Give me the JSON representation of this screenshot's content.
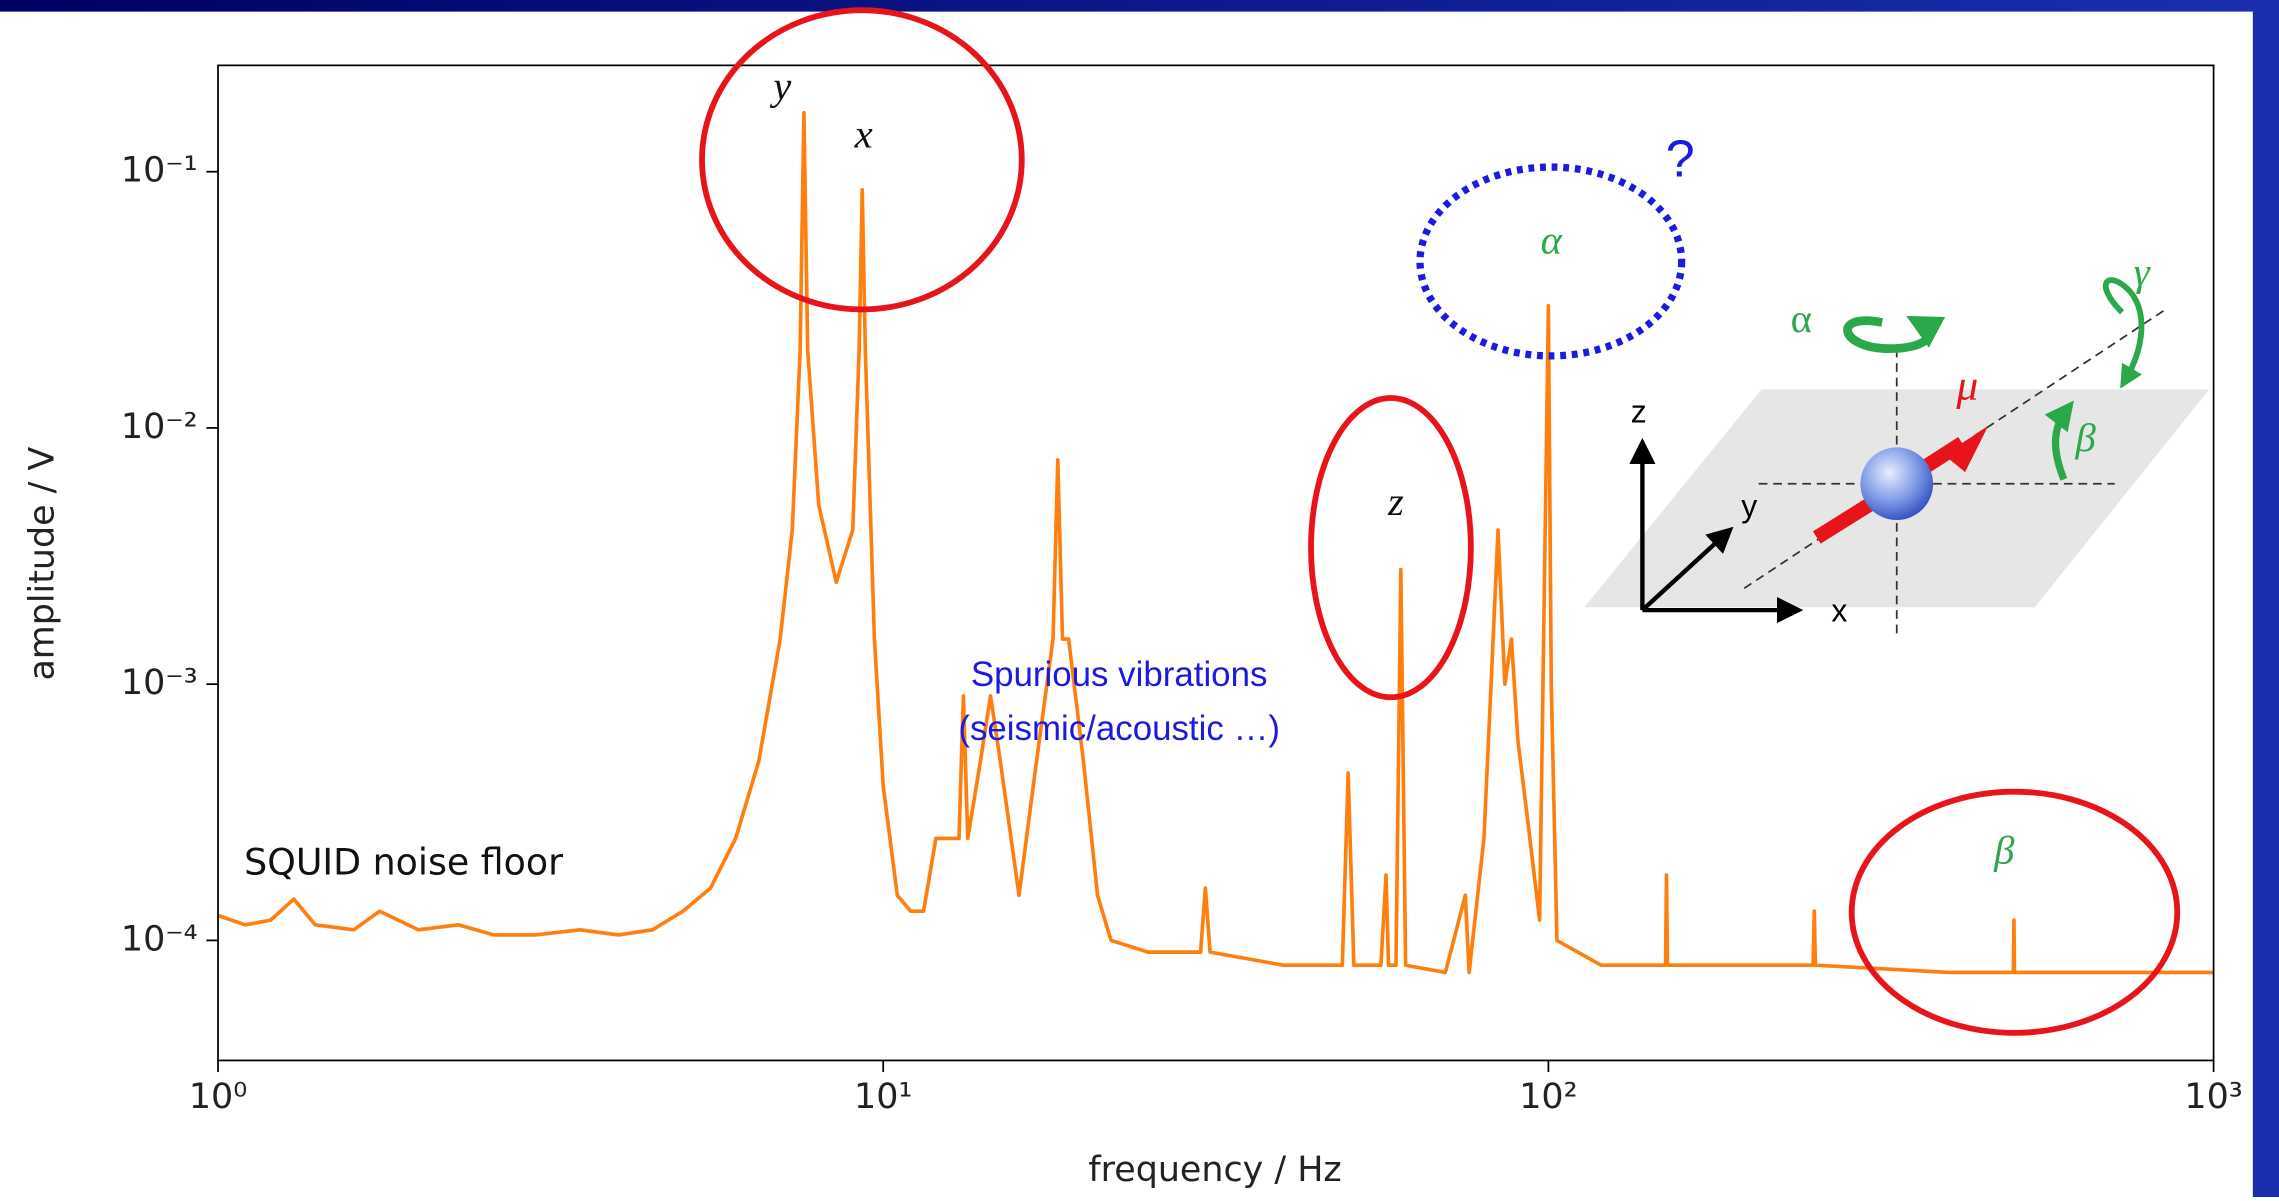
{
  "chart_data": {
    "type": "line",
    "xlabel": "frequency   / Hz",
    "ylabel": "amplitude  / V",
    "xscale": "log",
    "yscale": "log",
    "xlim": [
      1,
      1000
    ],
    "ylim": [
      3.4e-05,
      0.26
    ],
    "xticks": [
      {
        "value": 1,
        "label": "10⁰"
      },
      {
        "value": 10,
        "label": "10¹"
      },
      {
        "value": 100,
        "label": "10²"
      },
      {
        "value": 1000,
        "label": "10³"
      }
    ],
    "yticks": [
      {
        "value": 0.0001,
        "label": "10⁻⁴"
      },
      {
        "value": 0.001,
        "label": "10⁻³"
      },
      {
        "value": 0.01,
        "label": "10⁻²"
      },
      {
        "value": 0.1,
        "label": "10⁻¹"
      }
    ],
    "color": "#ff7f0e",
    "x": [
      1,
      1.1,
      1.2,
      1.3,
      1.4,
      1.6,
      1.75,
      2,
      2.3,
      2.6,
      3,
      3.5,
      4,
      4.5,
      5,
      5.5,
      6,
      6.5,
      7,
      7.3,
      7.5,
      7.6,
      7.7,
      8,
      8.5,
      9,
      9.2,
      9.3,
      9.4,
      9.7,
      10,
      10.5,
      11,
      11.5,
      12,
      12.5,
      13,
      13.2,
      13.4,
      14,
      14.5,
      15,
      16,
      17,
      18,
      18.3,
      18.6,
      19,
      20,
      21,
      22,
      25,
      30,
      30.5,
      31,
      40,
      49,
      50,
      51,
      56,
      57,
      57.5,
      59,
      60,
      61,
      70,
      75,
      76,
      80,
      82,
      84,
      86,
      88,
      90,
      93,
      97,
      100,
      101,
      103,
      120,
      150,
      150.5,
      151,
      200,
      250,
      251,
      252,
      400,
      500,
      501,
      502,
      700,
      1000
    ],
    "values": [
      0.000125,
      0.000115,
      0.00012,
      0.000145,
      0.000115,
      0.00011,
      0.00013,
      0.00011,
      0.000115,
      0.000105,
      0.000105,
      0.00011,
      0.000105,
      0.00011,
      0.00013,
      0.00016,
      0.00025,
      0.0005,
      0.0015,
      0.004,
      0.02,
      0.17,
      0.02,
      0.005,
      0.0025,
      0.004,
      0.02,
      0.085,
      0.02,
      0.0015,
      0.0004,
      0.00015,
      0.00013,
      0.00013,
      0.00025,
      0.00025,
      0.00025,
      0.0009,
      0.00025,
      0.0005,
      0.0009,
      0.0005,
      0.00015,
      0.0005,
      0.0015,
      0.0075,
      0.0015,
      0.0015,
      0.0005,
      0.00015,
      0.0001,
      9e-05,
      9e-05,
      0.00016,
      9e-05,
      8e-05,
      8e-05,
      0.00045,
      8e-05,
      8e-05,
      0.00018,
      8e-05,
      8e-05,
      0.0028,
      8e-05,
      7.5e-05,
      0.00015,
      7.5e-05,
      0.00025,
      0.001,
      0.004,
      0.001,
      0.0015,
      0.0006,
      0.0003,
      0.00012,
      0.03,
      0.001,
      0.0001,
      8e-05,
      8e-05,
      0.00018,
      8e-05,
      8e-05,
      8e-05,
      0.00013,
      8e-05,
      7.5e-05,
      7.5e-05,
      0.00012,
      7.5e-05,
      7.5e-05,
      7.5e-05
    ],
    "annotations": [
      "y",
      "x",
      "z",
      "α",
      "β",
      "?",
      "Spurious vibrations",
      "(seismic/acoustic …)",
      "SQUID noise floor"
    ],
    "inset_labels": [
      "α",
      "γ",
      "β",
      "μ⃗",
      "z",
      "y",
      "x"
    ]
  }
}
